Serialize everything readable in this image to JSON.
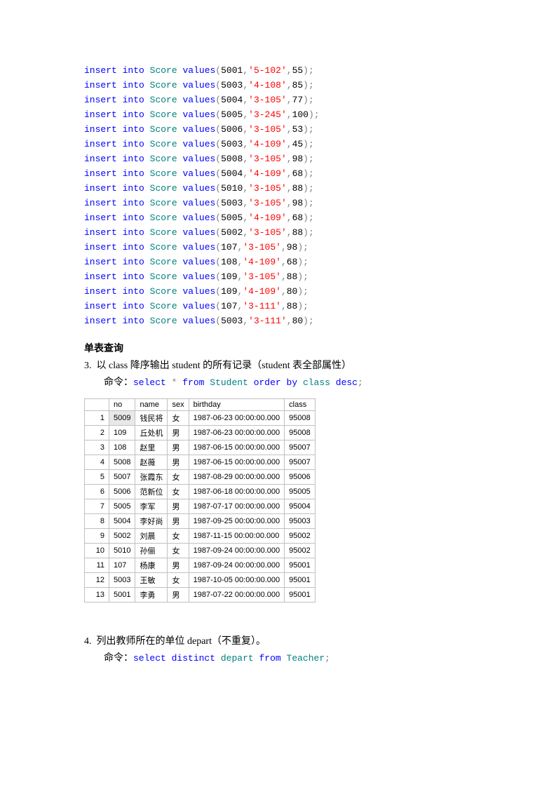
{
  "sql_inserts": [
    {
      "id": "5001",
      "code": "5-102",
      "val": "55"
    },
    {
      "id": "5003",
      "code": "4-108",
      "val": "85"
    },
    {
      "id": "5004",
      "code": "3-105",
      "val": "77"
    },
    {
      "id": "5005",
      "code": "3-245",
      "val": "100"
    },
    {
      "id": "5006",
      "code": "3-105",
      "val": "53"
    },
    {
      "id": "5003",
      "code": "4-109",
      "val": "45"
    },
    {
      "id": "5008",
      "code": "3-105",
      "val": "98"
    },
    {
      "id": "5004",
      "code": "4-109",
      "val": "68"
    },
    {
      "id": "5010",
      "code": "3-105",
      "val": "88"
    },
    {
      "id": "5003",
      "code": "3-105",
      "val": "98"
    },
    {
      "id": "5005",
      "code": "4-109",
      "val": "68"
    },
    {
      "id": "5002",
      "code": "3-105",
      "val": "88"
    },
    {
      "id": "107",
      "code": "3-105",
      "val": "98"
    },
    {
      "id": "108",
      "code": "4-109",
      "val": "68"
    },
    {
      "id": "109",
      "code": "3-105",
      "val": "88"
    },
    {
      "id": "109",
      "code": "4-109",
      "val": "80"
    },
    {
      "id": "107",
      "code": "3-111",
      "val": "88"
    },
    {
      "id": "5003",
      "code": "3-111",
      "val": "80"
    }
  ],
  "sql_tokens": {
    "insert": "insert",
    "into": "into",
    "score": "Score",
    "values": "values"
  },
  "section1": {
    "heading": "单表查询",
    "item_no": "3.",
    "item_text": "以 class 降序输出 student 的所有记录（student 表全部属性）",
    "cmd_label": "命令：",
    "cmd": {
      "select": "select",
      "star": "*",
      "from": "from",
      "student": "Student",
      "order": "order",
      "by": "by",
      "klass": "class",
      "desc": "desc",
      "semi": ";"
    }
  },
  "table": {
    "columns": [
      "no",
      "name",
      "sex",
      "birthday",
      "class"
    ],
    "rows": [
      [
        "5009",
        "钱民将",
        "女",
        "1987-06-23 00:00:00.000",
        "95008"
      ],
      [
        "109",
        "丘处机",
        "男",
        "1987-06-23 00:00:00.000",
        "95008"
      ],
      [
        "108",
        "赵里",
        "男",
        "1987-06-15 00:00:00.000",
        "95007"
      ],
      [
        "5008",
        "赵薇",
        "男",
        "1987-06-15 00:00:00.000",
        "95007"
      ],
      [
        "5007",
        "张霞东",
        "女",
        "1987-08-29 00:00:00.000",
        "95006"
      ],
      [
        "5006",
        "范新位",
        "女",
        "1987-06-18 00:00:00.000",
        "95005"
      ],
      [
        "5005",
        "李军",
        "男",
        "1987-07-17 00:00:00.000",
        "95004"
      ],
      [
        "5004",
        "李好尚",
        "男",
        "1987-09-25 00:00:00.000",
        "95003"
      ],
      [
        "5002",
        "刘晨",
        "女",
        "1987-11-15 00:00:00.000",
        "95002"
      ],
      [
        "5010",
        "孙俪",
        "女",
        "1987-09-24 00:00:00.000",
        "95002"
      ],
      [
        "107",
        "杨康",
        "男",
        "1987-09-24 00:00:00.000",
        "95001"
      ],
      [
        "5003",
        "王敏",
        "女",
        "1987-10-05 00:00:00.000",
        "95001"
      ],
      [
        "5001",
        "李勇",
        "男",
        "1987-07-22 00:00:00.000",
        "95001"
      ]
    ]
  },
  "section2": {
    "item_no": "4.",
    "item_text": "列出教师所在的单位 depart（不重复）。",
    "cmd_label": "命令：",
    "cmd": {
      "select": "select",
      "distinct": "distinct",
      "depart": "depart",
      "from": "from",
      "teacher": "Teacher",
      "semi": ";"
    }
  }
}
